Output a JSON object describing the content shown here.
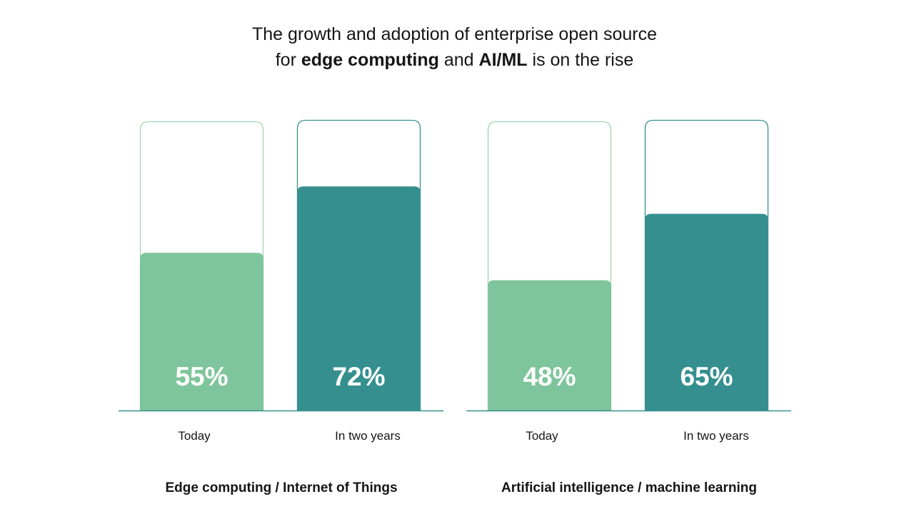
{
  "title": {
    "line1": "The growth and adoption of enterprise open source",
    "line2_pre": "for ",
    "line2_bold1": "edge computing",
    "line2_mid": " and ",
    "line2_bold2": "AI/ML",
    "line2_post": " is on the rise"
  },
  "colors": {
    "today": "#7fc59b",
    "two_years": "#358f8f",
    "today_outline": "#9fd4b3",
    "two_years_outline": "#358f8f",
    "baseline": "#358f8f",
    "value_text": "#ffffff"
  },
  "chart_data": [
    {
      "type": "bar",
      "title": "Edge computing / Internet of Things",
      "categories": [
        "Today",
        "In two years"
      ],
      "values": [
        55,
        72
      ],
      "value_labels": [
        "55%",
        "72%"
      ],
      "unit": "%",
      "ylim": [
        0,
        100
      ],
      "grid": false,
      "legend": "none"
    },
    {
      "type": "bar",
      "title": "Artificial intelligence / machine learning",
      "categories": [
        "Today",
        "In two years"
      ],
      "values": [
        48,
        65
      ],
      "value_labels": [
        "48%",
        "65%"
      ],
      "unit": "%",
      "ylim": [
        0,
        100
      ],
      "grid": false,
      "legend": "none"
    }
  ]
}
